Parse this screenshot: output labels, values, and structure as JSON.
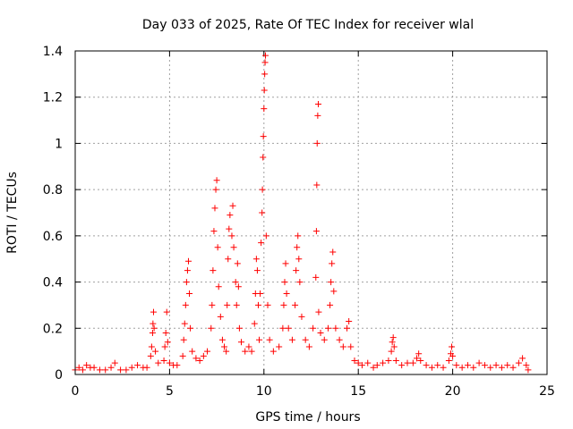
{
  "chart_data": {
    "type": "scatter",
    "title": "Day 033 of 2025, Rate Of TEC Index for receiver wlal",
    "xlabel": "GPS time / hours",
    "ylabel": "ROTI / TECUs",
    "xlim": [
      0,
      25
    ],
    "ylim": [
      0,
      1.4
    ],
    "x_ticks": [
      0,
      5,
      10,
      15,
      20,
      25
    ],
    "x_tick_labels": [
      "0",
      "5",
      "10",
      "15",
      "20",
      "25"
    ],
    "y_ticks": [
      0,
      0.2,
      0.4,
      0.6,
      0.8,
      1.0,
      1.2,
      1.4
    ],
    "y_tick_labels": [
      "0",
      "0.2",
      "0.4",
      "0.6",
      "0.8",
      "1",
      "1.2",
      "1.4"
    ],
    "grid": true,
    "marker": "+",
    "series": [
      {
        "color": "#ff0000",
        "points": [
          [
            0.0,
            0.02
          ],
          [
            0.2,
            0.03
          ],
          [
            0.4,
            0.02
          ],
          [
            0.6,
            0.04
          ],
          [
            0.8,
            0.03
          ],
          [
            1.0,
            0.03
          ],
          [
            1.3,
            0.02
          ],
          [
            1.6,
            0.02
          ],
          [
            1.9,
            0.03
          ],
          [
            2.1,
            0.05
          ],
          [
            2.4,
            0.02
          ],
          [
            2.7,
            0.02
          ],
          [
            3.0,
            0.03
          ],
          [
            3.3,
            0.04
          ],
          [
            3.6,
            0.03
          ],
          [
            3.8,
            0.03
          ],
          [
            4.0,
            0.08
          ],
          [
            4.05,
            0.12
          ],
          [
            4.1,
            0.18
          ],
          [
            4.12,
            0.22
          ],
          [
            4.15,
            0.27
          ],
          [
            4.18,
            0.2
          ],
          [
            4.25,
            0.1
          ],
          [
            4.4,
            0.05
          ],
          [
            4.7,
            0.06
          ],
          [
            4.75,
            0.12
          ],
          [
            4.8,
            0.18
          ],
          [
            4.85,
            0.27
          ],
          [
            4.9,
            0.14
          ],
          [
            5.0,
            0.05
          ],
          [
            5.2,
            0.04
          ],
          [
            5.4,
            0.04
          ],
          [
            5.7,
            0.08
          ],
          [
            5.75,
            0.15
          ],
          [
            5.8,
            0.22
          ],
          [
            5.85,
            0.3
          ],
          [
            5.9,
            0.4
          ],
          [
            5.95,
            0.45
          ],
          [
            6.0,
            0.49
          ],
          [
            6.05,
            0.35
          ],
          [
            6.1,
            0.2
          ],
          [
            6.2,
            0.1
          ],
          [
            6.4,
            0.07
          ],
          [
            6.6,
            0.06
          ],
          [
            6.8,
            0.08
          ],
          [
            7.0,
            0.1
          ],
          [
            7.2,
            0.2
          ],
          [
            7.25,
            0.3
          ],
          [
            7.3,
            0.45
          ],
          [
            7.35,
            0.62
          ],
          [
            7.4,
            0.72
          ],
          [
            7.45,
            0.8
          ],
          [
            7.5,
            0.84
          ],
          [
            7.55,
            0.55
          ],
          [
            7.6,
            0.38
          ],
          [
            7.7,
            0.25
          ],
          [
            7.8,
            0.15
          ],
          [
            7.9,
            0.12
          ],
          [
            8.0,
            0.1
          ],
          [
            8.05,
            0.3
          ],
          [
            8.1,
            0.5
          ],
          [
            8.15,
            0.63
          ],
          [
            8.2,
            0.69
          ],
          [
            8.3,
            0.6
          ],
          [
            8.35,
            0.73
          ],
          [
            8.4,
            0.55
          ],
          [
            8.5,
            0.4
          ],
          [
            8.55,
            0.3
          ],
          [
            8.6,
            0.48
          ],
          [
            8.65,
            0.38
          ],
          [
            8.7,
            0.2
          ],
          [
            8.8,
            0.14
          ],
          [
            9.0,
            0.1
          ],
          [
            9.2,
            0.12
          ],
          [
            9.35,
            0.1
          ],
          [
            9.5,
            0.22
          ],
          [
            9.55,
            0.35
          ],
          [
            9.6,
            0.5
          ],
          [
            9.65,
            0.45
          ],
          [
            9.7,
            0.3
          ],
          [
            9.75,
            0.15
          ],
          [
            9.8,
            0.35
          ],
          [
            9.85,
            0.57
          ],
          [
            9.9,
            0.7
          ],
          [
            9.92,
            0.8
          ],
          [
            9.95,
            0.94
          ],
          [
            9.97,
            1.03
          ],
          [
            10.0,
            1.15
          ],
          [
            10.02,
            1.23
          ],
          [
            10.04,
            1.3
          ],
          [
            10.06,
            1.35
          ],
          [
            10.08,
            1.38
          ],
          [
            10.12,
            0.6
          ],
          [
            10.2,
            0.3
          ],
          [
            10.3,
            0.15
          ],
          [
            10.5,
            0.1
          ],
          [
            10.8,
            0.12
          ],
          [
            11.0,
            0.2
          ],
          [
            11.05,
            0.3
          ],
          [
            11.1,
            0.4
          ],
          [
            11.15,
            0.48
          ],
          [
            11.2,
            0.35
          ],
          [
            11.3,
            0.2
          ],
          [
            11.5,
            0.15
          ],
          [
            11.65,
            0.3
          ],
          [
            11.7,
            0.45
          ],
          [
            11.75,
            0.55
          ],
          [
            11.8,
            0.6
          ],
          [
            11.85,
            0.5
          ],
          [
            11.9,
            0.4
          ],
          [
            12.0,
            0.25
          ],
          [
            12.2,
            0.15
          ],
          [
            12.4,
            0.12
          ],
          [
            12.6,
            0.2
          ],
          [
            12.75,
            0.42
          ],
          [
            12.78,
            0.62
          ],
          [
            12.8,
            0.82
          ],
          [
            12.82,
            1.0
          ],
          [
            12.85,
            1.12
          ],
          [
            12.88,
            1.17
          ],
          [
            12.9,
            0.27
          ],
          [
            13.0,
            0.18
          ],
          [
            13.2,
            0.15
          ],
          [
            13.4,
            0.2
          ],
          [
            13.5,
            0.3
          ],
          [
            13.55,
            0.4
          ],
          [
            13.6,
            0.48
          ],
          [
            13.65,
            0.53
          ],
          [
            13.7,
            0.36
          ],
          [
            13.8,
            0.2
          ],
          [
            14.0,
            0.15
          ],
          [
            14.2,
            0.12
          ],
          [
            14.4,
            0.2
          ],
          [
            14.5,
            0.23
          ],
          [
            14.6,
            0.12
          ],
          [
            14.8,
            0.06
          ],
          [
            15.0,
            0.05
          ],
          [
            15.2,
            0.04
          ],
          [
            15.5,
            0.05
          ],
          [
            15.8,
            0.03
          ],
          [
            16.0,
            0.04
          ],
          [
            16.3,
            0.05
          ],
          [
            16.6,
            0.06
          ],
          [
            16.75,
            0.1
          ],
          [
            16.8,
            0.14
          ],
          [
            16.85,
            0.16
          ],
          [
            16.9,
            0.12
          ],
          [
            17.0,
            0.06
          ],
          [
            17.3,
            0.04
          ],
          [
            17.6,
            0.05
          ],
          [
            17.9,
            0.05
          ],
          [
            18.1,
            0.07
          ],
          [
            18.2,
            0.09
          ],
          [
            18.3,
            0.06
          ],
          [
            18.6,
            0.04
          ],
          [
            18.9,
            0.03
          ],
          [
            19.2,
            0.04
          ],
          [
            19.5,
            0.03
          ],
          [
            19.8,
            0.06
          ],
          [
            19.9,
            0.09
          ],
          [
            19.95,
            0.12
          ],
          [
            20.0,
            0.08
          ],
          [
            20.2,
            0.04
          ],
          [
            20.5,
            0.03
          ],
          [
            20.8,
            0.04
          ],
          [
            21.1,
            0.03
          ],
          [
            21.4,
            0.05
          ],
          [
            21.7,
            0.04
          ],
          [
            22.0,
            0.03
          ],
          [
            22.3,
            0.04
          ],
          [
            22.6,
            0.03
          ],
          [
            22.9,
            0.04
          ],
          [
            23.2,
            0.03
          ],
          [
            23.5,
            0.05
          ],
          [
            23.7,
            0.07
          ],
          [
            23.9,
            0.04
          ],
          [
            24.0,
            0.02
          ]
        ]
      }
    ]
  }
}
